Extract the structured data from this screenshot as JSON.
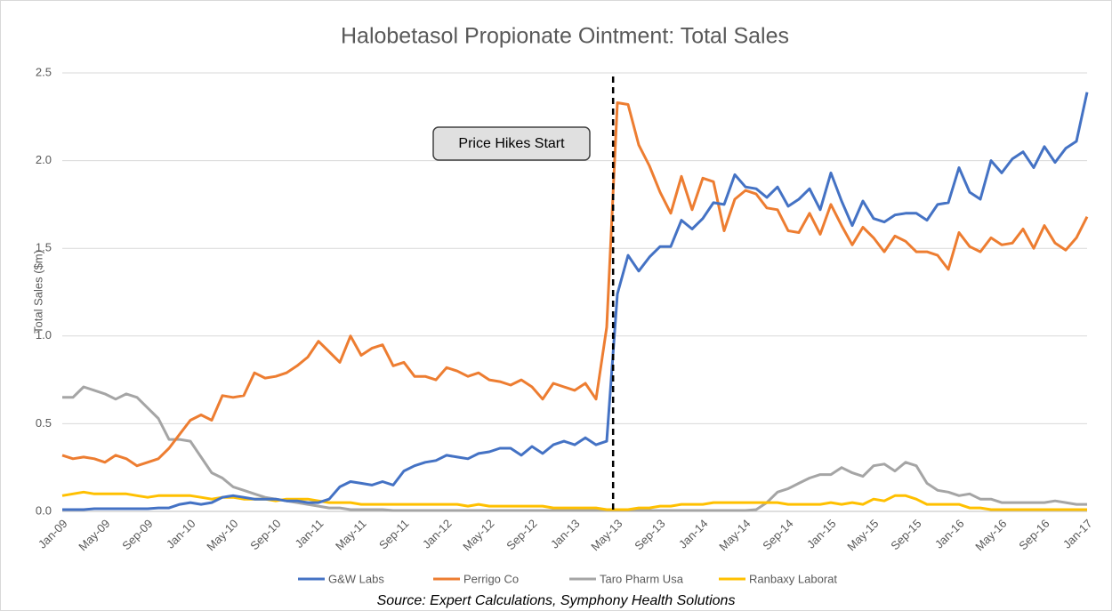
{
  "chart_data": {
    "type": "line",
    "title": "Halobetasol Propionate Ointment: Total Sales",
    "y_label": "Total Sales ($m)",
    "source": "Source: Expert Calculations, Symphony Health Solutions",
    "annotation": {
      "text": "Price Hikes Start",
      "x": 51.6
    },
    "categories": [
      "Jan-09",
      null,
      null,
      null,
      "May-09",
      null,
      null,
      null,
      "Sep-09",
      null,
      null,
      null,
      "Jan-10",
      null,
      null,
      null,
      "May-10",
      null,
      null,
      null,
      "Sep-10",
      null,
      null,
      null,
      "Jan-11",
      null,
      null,
      null,
      "May-11",
      null,
      null,
      null,
      "Sep-11",
      null,
      null,
      null,
      "Jan-12",
      null,
      null,
      null,
      "May-12",
      null,
      null,
      null,
      "Sep-12",
      null,
      null,
      null,
      "Jan-13",
      null,
      null,
      null,
      "May-13",
      null,
      null,
      null,
      "Sep-13",
      null,
      null,
      null,
      "Jan-14",
      null,
      null,
      null,
      "May-14",
      null,
      null,
      null,
      "Sep-14",
      null,
      null,
      null,
      "Jan-15",
      null,
      null,
      null,
      "May-15",
      null,
      null,
      null,
      "Sep-15",
      null,
      null,
      null,
      "Jan-16",
      null,
      null,
      null,
      "May-16",
      null,
      null,
      null,
      "Sep-16",
      null,
      null,
      null,
      "Jan-17"
    ],
    "ylim": [
      0,
      2.5
    ],
    "yticks": [
      {
        "value": 0,
        "label": "0.0"
      },
      0.5,
      {
        "value": 1,
        "label": "1.0"
      },
      1.5,
      {
        "value": 2,
        "label": "2.0"
      },
      2.5
    ],
    "grid": true,
    "series": [
      {
        "name": "G&W Labs",
        "color": "#4472c4",
        "values": [
          0.01,
          0.01,
          0.01,
          0.015,
          0.015,
          0.015,
          0.015,
          0.015,
          0.015,
          0.02,
          0.02,
          0.04,
          0.05,
          0.04,
          0.05,
          0.08,
          0.09,
          0.08,
          0.07,
          0.07,
          0.07,
          0.06,
          0.06,
          0.05,
          0.05,
          0.07,
          0.14,
          0.17,
          0.16,
          0.15,
          0.17,
          0.15,
          0.23,
          0.26,
          0.28,
          0.29,
          0.32,
          0.31,
          0.3,
          0.33,
          0.34,
          0.36,
          0.36,
          0.32,
          0.37,
          0.33,
          0.38,
          0.4,
          0.38,
          0.42,
          0.38,
          0.4,
          1.24,
          1.46,
          1.37,
          1.45,
          1.51,
          1.51,
          1.66,
          1.61,
          1.67,
          1.76,
          1.75,
          1.92,
          1.85,
          1.84,
          1.79,
          1.85,
          1.74,
          1.78,
          1.84,
          1.72,
          1.93,
          1.77,
          1.63,
          1.77,
          1.67,
          1.65,
          1.69,
          1.7,
          1.7,
          1.66,
          1.75,
          1.76,
          1.96,
          1.82,
          1.78,
          2.0,
          1.93,
          2.01,
          2.05,
          1.96,
          2.08,
          1.99,
          2.07,
          2.11,
          2.39
        ]
      },
      {
        "name": "Perrigo Co",
        "color": "#ed7d31",
        "values": [
          0.32,
          0.3,
          0.31,
          0.3,
          0.28,
          0.32,
          0.3,
          0.26,
          0.28,
          0.3,
          0.36,
          0.44,
          0.52,
          0.55,
          0.52,
          0.66,
          0.65,
          0.66,
          0.79,
          0.76,
          0.77,
          0.79,
          0.83,
          0.88,
          0.97,
          0.91,
          0.85,
          1.0,
          0.89,
          0.93,
          0.95,
          0.83,
          0.85,
          0.77,
          0.77,
          0.75,
          0.82,
          0.8,
          0.77,
          0.79,
          0.75,
          0.74,
          0.72,
          0.75,
          0.71,
          0.64,
          0.73,
          0.71,
          0.69,
          0.73,
          0.64,
          1.05,
          2.33,
          2.32,
          2.09,
          1.97,
          1.82,
          1.7,
          1.91,
          1.72,
          1.9,
          1.88,
          1.6,
          1.78,
          1.83,
          1.81,
          1.73,
          1.72,
          1.6,
          1.59,
          1.7,
          1.58,
          1.75,
          1.63,
          1.52,
          1.62,
          1.56,
          1.48,
          1.57,
          1.54,
          1.48,
          1.48,
          1.46,
          1.38,
          1.59,
          1.51,
          1.48,
          1.56,
          1.52,
          1.53,
          1.61,
          1.5,
          1.63,
          1.53,
          1.49,
          1.56,
          1.68
        ]
      },
      {
        "name": "Taro Pharm Usa",
        "color": "#a5a5a5",
        "values": [
          0.65,
          0.65,
          0.71,
          0.69,
          0.67,
          0.64,
          0.67,
          0.65,
          0.59,
          0.53,
          0.41,
          0.41,
          0.4,
          0.31,
          0.22,
          0.19,
          0.14,
          0.12,
          0.1,
          0.08,
          0.07,
          0.06,
          0.05,
          0.04,
          0.03,
          0.02,
          0.02,
          0.01,
          0.01,
          0.01,
          0.01,
          0.005,
          0.005,
          0.005,
          0.005,
          0.005,
          0.005,
          0.005,
          0.005,
          0.005,
          0.005,
          0.005,
          0.005,
          0.005,
          0.005,
          0.005,
          0.005,
          0.005,
          0.005,
          0.005,
          0.005,
          0.005,
          0.005,
          0.005,
          0.005,
          0.005,
          0.005,
          0.005,
          0.005,
          0.005,
          0.005,
          0.005,
          0.005,
          0.005,
          0.005,
          0.01,
          0.05,
          0.11,
          0.13,
          0.16,
          0.19,
          0.21,
          0.21,
          0.25,
          0.22,
          0.2,
          0.26,
          0.27,
          0.23,
          0.28,
          0.26,
          0.16,
          0.12,
          0.11,
          0.09,
          0.1,
          0.07,
          0.07,
          0.05,
          0.05,
          0.05,
          0.05,
          0.05,
          0.06,
          0.05,
          0.04,
          0.04
        ]
      },
      {
        "name": "Ranbaxy Laborat",
        "color": "#ffc000",
        "values": [
          0.09,
          0.1,
          0.11,
          0.1,
          0.1,
          0.1,
          0.1,
          0.09,
          0.08,
          0.09,
          0.09,
          0.09,
          0.09,
          0.08,
          0.07,
          0.08,
          0.08,
          0.07,
          0.07,
          0.07,
          0.06,
          0.07,
          0.07,
          0.07,
          0.06,
          0.05,
          0.05,
          0.05,
          0.04,
          0.04,
          0.04,
          0.04,
          0.04,
          0.04,
          0.04,
          0.04,
          0.04,
          0.04,
          0.03,
          0.04,
          0.03,
          0.03,
          0.03,
          0.03,
          0.03,
          0.03,
          0.02,
          0.02,
          0.02,
          0.02,
          0.02,
          0.01,
          0.01,
          0.01,
          0.02,
          0.02,
          0.03,
          0.03,
          0.04,
          0.04,
          0.04,
          0.05,
          0.05,
          0.05,
          0.05,
          0.05,
          0.05,
          0.05,
          0.04,
          0.04,
          0.04,
          0.04,
          0.05,
          0.04,
          0.05,
          0.04,
          0.07,
          0.06,
          0.09,
          0.09,
          0.07,
          0.04,
          0.04,
          0.04,
          0.04,
          0.02,
          0.02,
          0.01,
          0.01,
          0.01,
          0.01,
          0.01,
          0.01,
          0.01,
          0.01,
          0.01,
          0.01
        ]
      }
    ]
  }
}
